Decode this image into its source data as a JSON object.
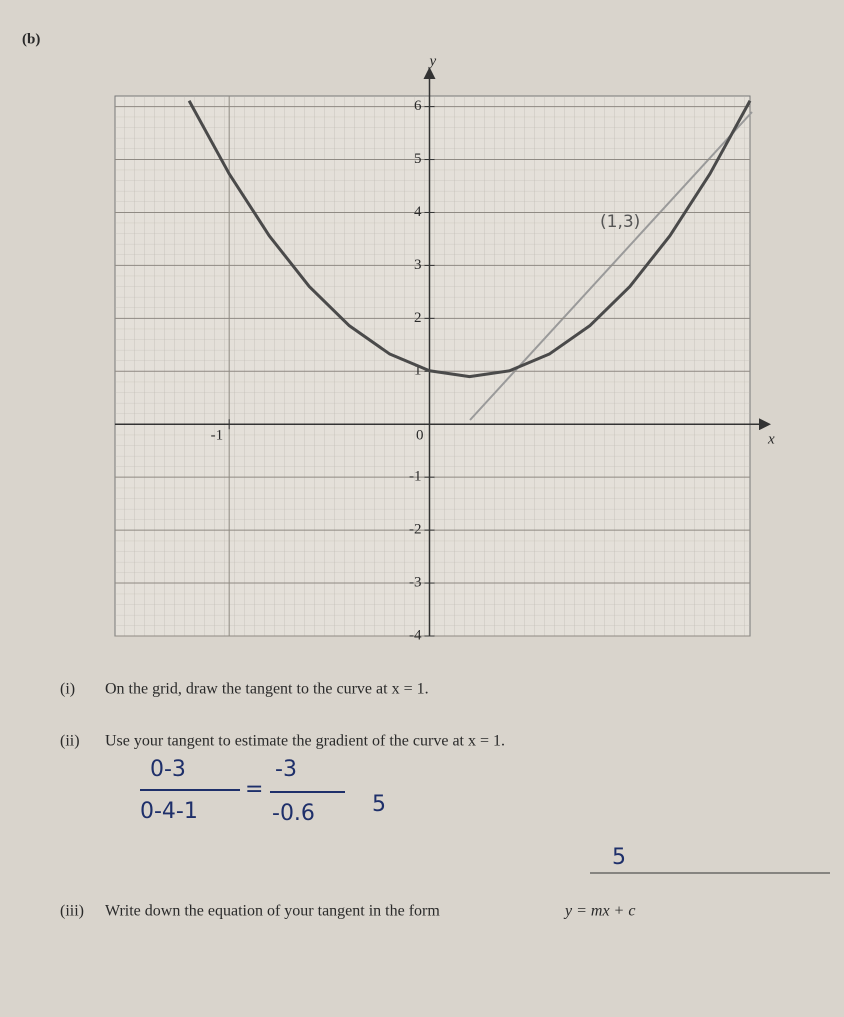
{
  "part": "(b)",
  "chart_data": {
    "type": "line",
    "x_label": "x",
    "y_label": "y",
    "x": [
      -1.2,
      -1.0,
      -0.8,
      -0.6,
      -0.4,
      -0.2,
      0,
      0.2,
      0.4,
      0.6,
      0.8,
      1.0,
      1.2,
      1.4,
      1.6
    ],
    "series": [
      {
        "color": "#4a4a4a",
        "values": [
          6.11,
          4.73,
          3.56,
          2.6,
          1.86,
          1.33,
          1.01,
          0.9,
          1.01,
          1.33,
          1.86,
          2.6,
          3.56,
          4.73,
          6.11
        ]
      }
    ],
    "xlim": [
      -1.57,
      1.6
    ],
    "ylim": [
      -4,
      6.2
    ],
    "xticks": [
      -1,
      0
    ],
    "yticks": [
      -4,
      -3,
      -2,
      -1,
      1,
      2,
      3,
      4,
      5,
      6
    ],
    "grid": true
  },
  "questions": [
    {
      "number": "(i)",
      "text": "On the grid, draw the tangent to the curve at x = 1."
    },
    {
      "number": "(ii)",
      "text": "Use your tangent to estimate the gradient of the curve at x = 1."
    },
    {
      "number": "(iii)",
      "text": "Write down the equation of your tangent in the form",
      "form": "y = mx + c"
    }
  ],
  "handwriting": {
    "numerator": "0-3",
    "denominator": "0-4-1",
    "equals": "=",
    "numerator2": "-3",
    "denominator2": "-0.6",
    "result": "5",
    "answer": "5",
    "graph_note": "(1,3)"
  }
}
